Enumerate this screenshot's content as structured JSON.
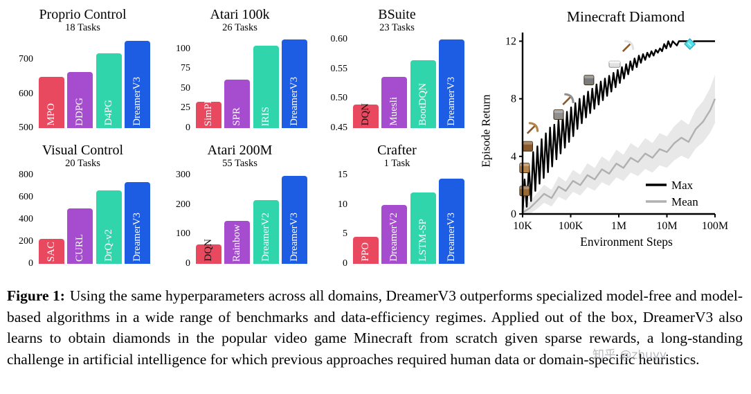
{
  "colors": {
    "bars": [
      "#e8495f",
      "#a64ccf",
      "#30d5ac",
      "#1d5de4"
    ],
    "axis": "#000000",
    "max_line": "#000000",
    "mean_line": "#b0b0b0",
    "mean_band": "#d8d8d8",
    "icon_colors": {
      "wood": "#9a6a35",
      "plank": "#b58448",
      "crafting": "#8a5a2c",
      "stone": "#8f8f8f",
      "furnace": "#7b7b7b",
      "iron": "#e2e2e2",
      "diamond": "#55e1e6",
      "handle": "#8a5a2c"
    }
  },
  "chart_data": [
    {
      "type": "bar",
      "title": "Proprio Control",
      "subtitle": "18 Tasks",
      "categories": [
        "MPO",
        "DDPG",
        "D4PG",
        "DreamerV3"
      ],
      "values": [
        650,
        665,
        720,
        755
      ],
      "ylim": [
        500,
        760
      ],
      "yticks": [
        500,
        600,
        700
      ],
      "ytick_labels": [
        "500",
        "600",
        "700"
      ]
    },
    {
      "type": "bar",
      "title": "Atari 100k",
      "subtitle": "26 Tasks",
      "categories": [
        "SimPLe",
        "SPR",
        "IRIS",
        "DreamerV3"
      ],
      "values": [
        33,
        61,
        104,
        112
      ],
      "ylim": [
        0,
        112
      ],
      "yticks": [
        0,
        25,
        50,
        75,
        100
      ],
      "ytick_labels": [
        "0",
        "25",
        "50",
        "75",
        "100"
      ]
    },
    {
      "type": "bar",
      "title": "BSuite",
      "subtitle": "23 Tasks",
      "categories": [
        "DQN",
        "Muesli",
        "BootDQN",
        "DreamerV3"
      ],
      "values": [
        0.49,
        0.537,
        0.565,
        0.6
      ],
      "ylim": [
        0.45,
        0.6
      ],
      "yticks": [
        0.45,
        0.5,
        0.55,
        0.6
      ],
      "ytick_labels": [
        "0.45",
        "0.50",
        "0.55",
        "0.60"
      ],
      "outside_labels": [
        0
      ]
    },
    {
      "type": "bar",
      "title": "Visual Control",
      "subtitle": "20 Tasks",
      "categories": [
        "SAC",
        "CURL",
        "DrQ-v2",
        "DreamerV3"
      ],
      "values": [
        225,
        500,
        660,
        740
      ],
      "ylim": [
        0,
        800
      ],
      "yticks": [
        0,
        200,
        400,
        600,
        800
      ],
      "ytick_labels": [
        "0",
        "200",
        "400",
        "600",
        "800"
      ]
    },
    {
      "type": "bar",
      "title": "Atari 200M",
      "subtitle": "55 Tasks",
      "categories": [
        "DQN",
        "Rainbow",
        "DreamerV2",
        "DreamerV3"
      ],
      "values": [
        65,
        145,
        215,
        298
      ],
      "ylim": [
        0,
        300
      ],
      "yticks": [
        0,
        100,
        200,
        300
      ],
      "ytick_labels": [
        "0",
        "100",
        "200",
        "300"
      ],
      "outside_labels": [
        0
      ]
    },
    {
      "type": "bar",
      "title": "Crafter",
      "subtitle": "1 Task",
      "categories": [
        "PPO",
        "DreamerV2",
        "LSTM-SP",
        "DreamerV3"
      ],
      "values": [
        4.6,
        10,
        12.1,
        14.4
      ],
      "ylim": [
        0,
        15
      ],
      "yticks": [
        0,
        5,
        10,
        15
      ],
      "ytick_labels": [
        "0",
        "5",
        "10",
        "15"
      ]
    },
    {
      "type": "line",
      "title": "Minecraft Diamond",
      "xlabel": "Environment Steps",
      "ylabel": "Episode Return",
      "x_scale": "log",
      "xtick_values": [
        10000,
        100000,
        1000000,
        10000000,
        100000000
      ],
      "xtick_labels": [
        "10K",
        "100K",
        "1M",
        "10M",
        "100M"
      ],
      "yticks": [
        0,
        4,
        8,
        12
      ],
      "ytick_labels": [
        "0",
        "4",
        "8",
        "12"
      ],
      "ylim": [
        0,
        12.6
      ],
      "legend_position": "lower right",
      "series": [
        {
          "name": "Max",
          "color": "#000000",
          "points": [
            [
              10000,
              0
            ],
            [
              11000,
              2.4
            ],
            [
              12200,
              0.5
            ],
            [
              13500,
              3.3
            ],
            [
              15000,
              0.9
            ],
            [
              16600,
              4.3
            ],
            [
              18400,
              1.6
            ],
            [
              20300,
              4.7
            ],
            [
              22500,
              2.1
            ],
            [
              24900,
              5.2
            ],
            [
              27500,
              2.5
            ],
            [
              30400,
              5.6
            ],
            [
              33700,
              2.9
            ],
            [
              37300,
              6.0
            ],
            [
              41200,
              3.3
            ],
            [
              45600,
              6.2
            ],
            [
              50500,
              3.8
            ],
            [
              55800,
              6.5
            ],
            [
              61700,
              4.2
            ],
            [
              68300,
              6.8
            ],
            [
              75600,
              4.6
            ],
            [
              83600,
              7.1
            ],
            [
              92500,
              5.0
            ],
            [
              102000,
              7.4
            ],
            [
              113000,
              5.4
            ],
            [
              125000,
              7.7
            ],
            [
              138000,
              5.9
            ],
            [
              153000,
              8.0
            ],
            [
              170000,
              6.3
            ],
            [
              188000,
              8.2
            ],
            [
              208000,
              6.7
            ],
            [
              230000,
              8.5
            ],
            [
              254000,
              7.0
            ],
            [
              281000,
              8.7
            ],
            [
              311000,
              7.3
            ],
            [
              344000,
              9.0
            ],
            [
              381000,
              7.6
            ],
            [
              422000,
              9.2
            ],
            [
              467000,
              7.9
            ],
            [
              516000,
              9.4
            ],
            [
              571000,
              8.2
            ],
            [
              632000,
              9.6
            ],
            [
              700000,
              8.5
            ],
            [
              774000,
              9.8
            ],
            [
              857000,
              8.8
            ],
            [
              948000,
              10.0
            ],
            [
              1050000,
              9.1
            ],
            [
              1160000,
              10.2
            ],
            [
              1280000,
              9.4
            ],
            [
              1420000,
              10.4
            ],
            [
              1570000,
              9.7
            ],
            [
              1740000,
              10.6
            ],
            [
              1920000,
              10.0
            ],
            [
              2130000,
              10.8
            ],
            [
              2360000,
              10.2
            ],
            [
              2610000,
              11.0
            ],
            [
              2880000,
              10.5
            ],
            [
              3190000,
              11.1
            ],
            [
              3530000,
              10.7
            ],
            [
              3910000,
              11.2
            ],
            [
              4320000,
              10.9
            ],
            [
              4780000,
              11.3
            ],
            [
              5290000,
              11.0
            ],
            [
              5860000,
              11.4
            ],
            [
              6480000,
              11.2
            ],
            [
              7170000,
              11.5
            ],
            [
              7930000,
              11.3
            ],
            [
              8780000,
              11.8
            ],
            [
              9710000,
              11.5
            ],
            [
              10700000,
              12.0
            ],
            [
              11900000,
              11.6
            ],
            [
              13200000,
              12.0
            ],
            [
              16100000,
              11.7
            ],
            [
              17800000,
              12.0
            ],
            [
              30000000,
              12.0
            ],
            [
              33000000,
              11.6
            ],
            [
              36500000,
              12.0
            ],
            [
              100000000,
              12.0
            ]
          ]
        },
        {
          "name": "Mean",
          "color": "#b0b0b0",
          "band": true,
          "points": [
            [
              10000,
              0.1
            ],
            [
              14000,
              0.4
            ],
            [
              20000,
              0.9
            ],
            [
              28000,
              1.4
            ],
            [
              40000,
              1.1
            ],
            [
              56000,
              1.9
            ],
            [
              79000,
              1.6
            ],
            [
              112000,
              2.3
            ],
            [
              158000,
              2.0
            ],
            [
              223000,
              2.7
            ],
            [
              316000,
              2.4
            ],
            [
              446000,
              3.1
            ],
            [
              630000,
              2.8
            ],
            [
              890000,
              3.5
            ],
            [
              1250000,
              3.2
            ],
            [
              1770000,
              3.9
            ],
            [
              2500000,
              3.6
            ],
            [
              3540000,
              4.2
            ],
            [
              5000000,
              3.9
            ],
            [
              7070000,
              4.5
            ],
            [
              10000000,
              4.3
            ],
            [
              14100000,
              4.9
            ],
            [
              20000000,
              5.3
            ],
            [
              28200000,
              5.0
            ],
            [
              39800000,
              5.9
            ],
            [
              56200000,
              6.4
            ],
            [
              79400000,
              7.2
            ],
            [
              100000000,
              8.0
            ]
          ]
        }
      ],
      "icons": [
        {
          "name": "wood-block",
          "x": 11000,
          "y": 1.6
        },
        {
          "name": "plank-block",
          "x": 11000,
          "y": 3.2
        },
        {
          "name": "crafting-table",
          "x": 12800,
          "y": 4.7
        },
        {
          "name": "wooden-pickaxe",
          "x": 15500,
          "y": 5.9
        },
        {
          "name": "stone-block",
          "x": 56000,
          "y": 6.9
        },
        {
          "name": "stone-pickaxe",
          "x": 85000,
          "y": 7.9
        },
        {
          "name": "furnace-block",
          "x": 240000,
          "y": 9.3
        },
        {
          "name": "iron-ingot",
          "x": 820000,
          "y": 10.4
        },
        {
          "name": "iron-pickaxe",
          "x": 1500000,
          "y": 11.6
        },
        {
          "name": "diamond",
          "x": 30000000,
          "y": 11.8
        }
      ]
    }
  ],
  "caption": {
    "label": "Figure 1:",
    "text": "Using the same hyperparameters across all domains, DreamerV3 outperforms specialized model-free and model-based algorithms in a wide range of benchmarks and data-efficiency regimes. Applied out of the box, DreamerV3 also learns to obtain diamonds in the popular video game Minecraft from scratch given sparse rewards, a long-standing challenge in artificial intelligence for which previous approaches required human data or domain-specific heuristics."
  },
  "watermark": "知乎 @zhuyy"
}
